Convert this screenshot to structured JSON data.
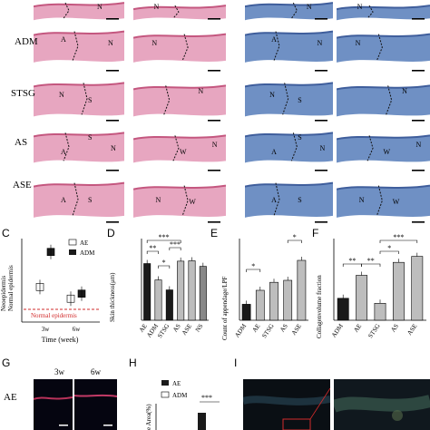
{
  "rows": [
    "ADM",
    "STSG",
    "AS",
    "ASE"
  ],
  "region_labels": {
    "N": "N",
    "A": "A",
    "S": "S",
    "W": "W"
  },
  "panel_letters": {
    "C": "C",
    "D": "D",
    "E": "E",
    "F": "F",
    "G": "G",
    "H": "H",
    "I": "I"
  },
  "colors": {
    "he_tissue": "#e7a6c0",
    "he_dark": "#c4577f",
    "mt_tissue": "#6f90c4",
    "mt_dark": "#3f5e9c",
    "normal_line": "#d22b2b",
    "bar_dark": "#1a1a1a",
    "bar_light": "#bdbdbd",
    "bar_white": "#ffffff"
  },
  "panel_c": {
    "ylabel": "Neoepidermis\nNormal epidermis",
    "xlabel": "Time (week)",
    "x_ticks": [
      "3w",
      "6w"
    ],
    "legend": [
      "AE",
      "ADM"
    ],
    "annotation": "Normal epidermis",
    "chart_data": {
      "type": "box",
      "x": [
        "3w",
        "6w"
      ],
      "series": [
        {
          "name": "AE",
          "values": [
            2.1,
            1.4
          ]
        },
        {
          "name": "ADM",
          "values": [
            4.2,
            1.7
          ]
        }
      ],
      "reference": 1.0
    }
  },
  "panel_d": {
    "ylabel": "Skin thickness(μm)",
    "categories": [
      "AE",
      "ADM",
      "STSG",
      "AS",
      "ASE",
      "NS"
    ],
    "values": [
      1420,
      1010,
      760,
      1480,
      1490,
      1350
    ],
    "ylim": [
      0,
      2000
    ],
    "sig": [
      "***",
      "**",
      "*",
      "***"
    ]
  },
  "panel_e": {
    "ylabel": "Count of appendage/LPF",
    "categories": [
      "ADM",
      "AE",
      "STSG",
      "AS",
      "ASE"
    ],
    "values": [
      8,
      15,
      19,
      20,
      30
    ],
    "ylim": [
      0,
      40
    ],
    "sig": [
      "*",
      "*"
    ]
  },
  "panel_f": {
    "ylabel": "Collagenvolume fraction",
    "categories": [
      "ADM",
      "AE",
      "STSG",
      "AS",
      "ASE"
    ],
    "values": [
      22,
      45,
      17,
      58,
      64
    ],
    "ylim": [
      0,
      80
    ],
    "sig": [
      "**",
      "**",
      "*",
      "***"
    ]
  },
  "panel_g": {
    "row": "AE",
    "cols": [
      "3w",
      "6w"
    ]
  },
  "panel_h": {
    "legend": [
      "AE",
      "ADM"
    ],
    "ylabel": "e Area(%)",
    "sig": "***"
  }
}
